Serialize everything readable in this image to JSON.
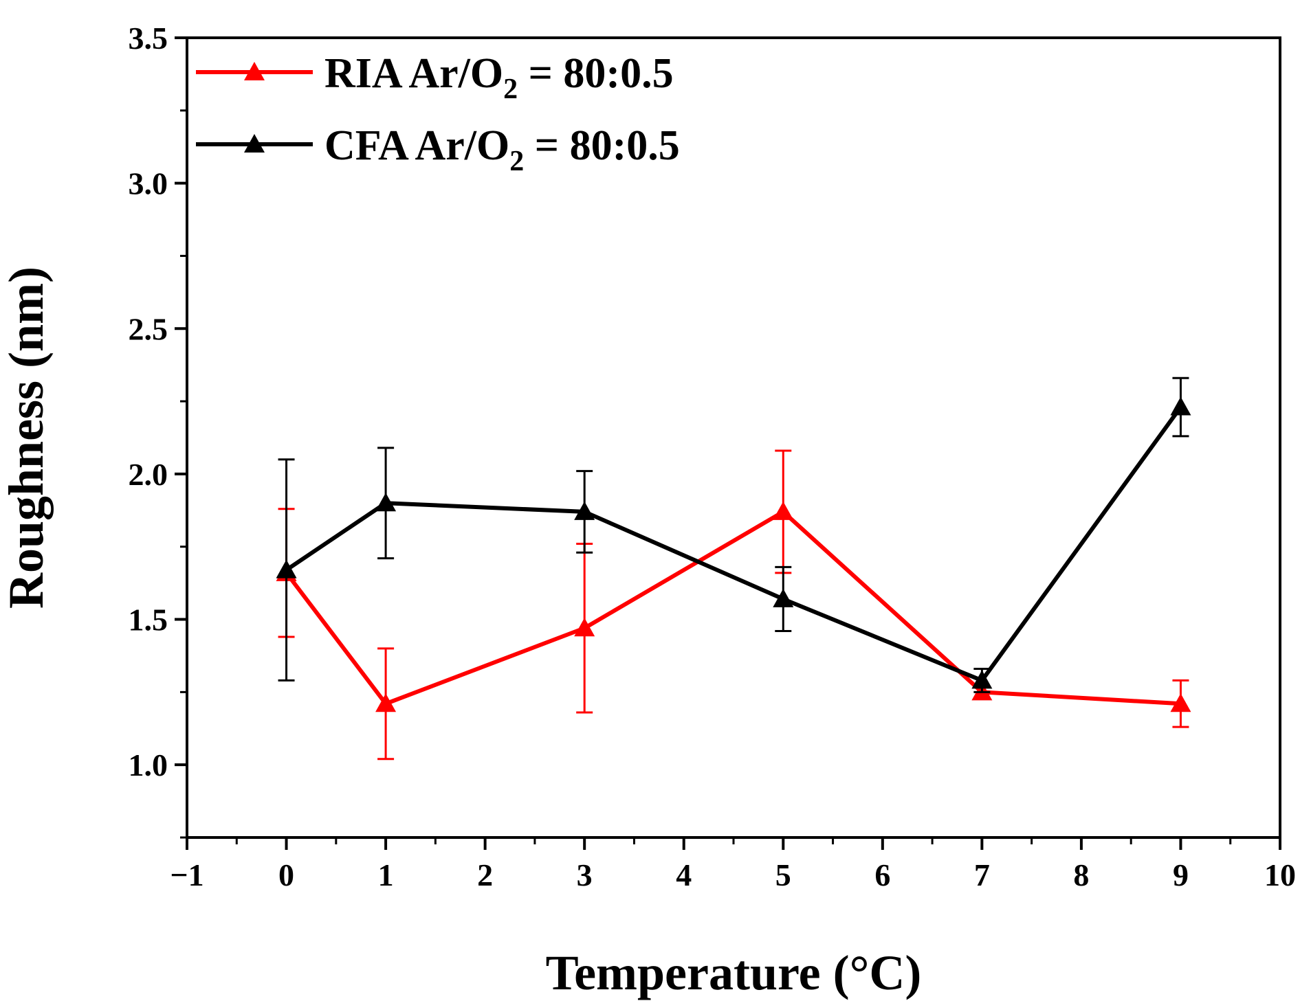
{
  "chart_data": {
    "type": "line",
    "title": "",
    "xlabel": "Temperature (°C)",
    "ylabel": "Roughness (nm)",
    "xlim": [
      -1,
      10
    ],
    "ylim": [
      0.75,
      3.5
    ],
    "x_ticks": [
      -1,
      0,
      1,
      2,
      3,
      4,
      5,
      6,
      7,
      8,
      9,
      10
    ],
    "x_tick_labels": [
      "−1",
      "0",
      "1",
      "2",
      "3",
      "4",
      "5",
      "6",
      "7",
      "8",
      "9",
      "10"
    ],
    "y_ticks": [
      1.0,
      1.5,
      2.0,
      2.5,
      3.0,
      3.5
    ],
    "y_tick_labels": [
      "1.0",
      "1.5",
      "2.0",
      "2.5",
      "3.0",
      "3.5"
    ],
    "legend_position": "top-left",
    "grid": false,
    "series": [
      {
        "name": "RIA  Ar/O2 = 80:0.5",
        "legend_main": "RIA  Ar/O",
        "legend_sub": "2",
        "legend_tail": " = 80:0.5",
        "color": "#ff0000",
        "marker": "triangle",
        "x": [
          0,
          1,
          3,
          5,
          7,
          9
        ],
        "y": [
          1.66,
          1.21,
          1.47,
          1.87,
          1.25,
          1.21
        ],
        "err": [
          0.22,
          0.19,
          0.29,
          0.21,
          0.02,
          0.08
        ]
      },
      {
        "name": "CFA Ar/O2 = 80:0.5",
        "legend_main": "CFA Ar/O",
        "legend_sub": "2",
        "legend_tail": " = 80:0.5",
        "color": "#000000",
        "marker": "triangle",
        "x": [
          0,
          1,
          3,
          5,
          7,
          9
        ],
        "y": [
          1.67,
          1.9,
          1.87,
          1.57,
          1.29,
          2.23
        ],
        "err": [
          0.38,
          0.19,
          0.14,
          0.11,
          0.04,
          0.1
        ]
      }
    ]
  }
}
